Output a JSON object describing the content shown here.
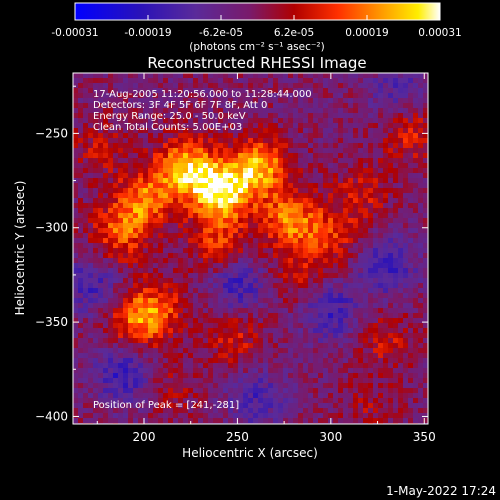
{
  "chart_data": {
    "type": "heatmap",
    "title": "Reconstructed RHESSI Image",
    "xlabel": "Heliocentric X (arcsec)",
    "ylabel": "Heliocentric Y (arcsec)",
    "xlim": [
      162,
      352
    ],
    "ylim": [
      -404,
      -218
    ],
    "x_ticks": [
      200,
      250,
      300,
      350
    ],
    "y_ticks": [
      -250,
      -300,
      -350,
      -400
    ],
    "colorbar": {
      "range": [
        -0.00031,
        0.00031
      ],
      "tick_labels": [
        "-0.00031",
        "-0.00019",
        "-6.2e-05",
        "6.2e-05",
        "0.00019",
        "0.00031"
      ],
      "unit_label": "(photons cm⁻² s⁻¹ asec⁻²)",
      "colormap": "blue-purple-red-yellow-white"
    },
    "annotations": {
      "time": "17-Aug-2005 11:20:56.000 to 11:28:44.000",
      "detectors": "Detectors: 3F 4F 5F 6F 7F 8F, Att 0",
      "energy": "Energy Range: 25.0 - 50.0 keV",
      "method": "Clean     Total Counts: 5.00E+03",
      "peak": "Position of Peak = [241,-281]"
    },
    "peak_position": [
      241,
      -281
    ],
    "blobs": [
      {
        "x": 241,
        "y": -281,
        "value": 0.00031
      },
      {
        "x": 222,
        "y": -268,
        "value": 0.00026
      },
      {
        "x": 262,
        "y": -268,
        "value": 0.00024
      },
      {
        "x": 200,
        "y": -286,
        "value": 0.0002
      },
      {
        "x": 278,
        "y": -296,
        "value": 0.0002
      },
      {
        "x": 186,
        "y": -304,
        "value": 0.00016
      },
      {
        "x": 240,
        "y": -310,
        "value": 0.00014
      },
      {
        "x": 300,
        "y": -305,
        "value": 0.00012
      },
      {
        "x": 196,
        "y": -350,
        "value": 0.00017
      },
      {
        "x": 208,
        "y": -342,
        "value": 0.00013
      },
      {
        "x": 248,
        "y": -358,
        "value": 0.00011
      },
      {
        "x": 282,
        "y": -325,
        "value": 9e-05
      },
      {
        "x": 342,
        "y": -250,
        "value": 0.00012
      },
      {
        "x": 316,
        "y": -282,
        "value": 0.0001
      },
      {
        "x": 330,
        "y": -360,
        "value": 9e-05
      },
      {
        "x": 176,
        "y": -258,
        "value": 8e-05
      },
      {
        "x": 214,
        "y": -386,
        "value": 7e-05
      },
      {
        "x": 320,
        "y": -396,
        "value": 6e-05
      },
      {
        "x": 300,
        "y": -344,
        "value": -0.00014
      },
      {
        "x": 250,
        "y": -330,
        "value": -0.00015
      },
      {
        "x": 190,
        "y": -378,
        "value": -0.00016
      },
      {
        "x": 330,
        "y": -320,
        "value": -0.00015
      },
      {
        "x": 172,
        "y": -330,
        "value": -0.00013
      },
      {
        "x": 260,
        "y": -390,
        "value": -0.00012
      },
      {
        "x": 336,
        "y": -228,
        "value": -0.0001
      }
    ]
  },
  "footer": {
    "timestamp": "1-May-2022 17:24"
  }
}
